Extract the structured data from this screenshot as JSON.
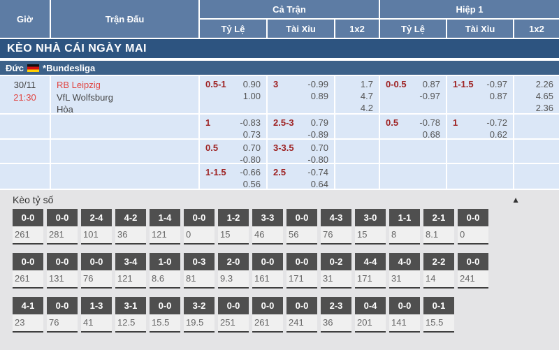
{
  "header": {
    "col_time": "Giờ",
    "col_match": "Trận Đấu",
    "group_full": "Cả Trận",
    "group_half": "Hiệp 1",
    "sub_handicap_full": "Tỷ Lệ",
    "sub_ou_full": "Tài Xỉu",
    "sub_1x2_full": "1x2",
    "sub_handicap_half": "Tỷ Lệ",
    "sub_ou_half": "Tài Xỉu",
    "sub_1x2_half": "1x2"
  },
  "section_title": "KÈO NHÀ CÁI NGÀY MAI",
  "league": {
    "country": "Đức",
    "flag": "germany-flag",
    "name": "*Bundesliga"
  },
  "match": {
    "date": "30/11",
    "time": "21:30",
    "home": "RB Leipzig",
    "away": "VfL Wolfsburg",
    "draw": "Hòa"
  },
  "colors": {
    "header_blue": "#5d7ca4",
    "title_blue": "#2d5480",
    "league_blue": "#3c6189",
    "row_blue": "#dbe7f7",
    "accent_red": "#e04542",
    "handicap_maroon": "#9e2222",
    "chip_gray": "#4f4f4f"
  },
  "odds_rows": [
    {
      "full_handicap": {
        "line": "0.5-1",
        "top": "0.90",
        "bottom": "1.00"
      },
      "full_ou": {
        "line": "3",
        "top": "-0.99",
        "bottom": "0.89"
      },
      "full_1x2": [
        "1.7",
        "4.7",
        "4.2"
      ],
      "half_handicap": {
        "line": "0-0.5",
        "top": "0.87",
        "bottom": "-0.97"
      },
      "half_ou": {
        "line": "1-1.5",
        "top": "-0.97",
        "bottom": "0.87"
      },
      "half_1x2": [
        "2.26",
        "4.65",
        "2.36"
      ]
    },
    {
      "full_handicap": {
        "line": "1",
        "top": "-0.83",
        "bottom": "0.73"
      },
      "full_ou": {
        "line": "2.5-3",
        "top": "0.79",
        "bottom": "-0.89"
      },
      "full_1x2": null,
      "half_handicap": {
        "line": "0.5",
        "top": "-0.78",
        "bottom": "0.68"
      },
      "half_ou": {
        "line": "1",
        "top": "-0.72",
        "bottom": "0.62"
      },
      "half_1x2": null
    },
    {
      "full_handicap": {
        "line": "0.5",
        "top": "0.70",
        "bottom": "-0.80"
      },
      "full_ou": {
        "line": "3-3.5",
        "top": "0.70",
        "bottom": "-0.80"
      },
      "full_1x2": null,
      "half_handicap": null,
      "half_ou": null,
      "half_1x2": null
    },
    {
      "full_handicap": {
        "line": "1-1.5",
        "top": "-0.66",
        "bottom": "0.56"
      },
      "full_ou": {
        "line": "2.5",
        "top": "-0.74",
        "bottom": "0.64"
      },
      "full_1x2": null,
      "half_handicap": null,
      "half_ou": null,
      "half_1x2": null
    }
  ],
  "score_section": {
    "title": "Kèo tỷ số",
    "collapse_icon": "▲",
    "rows": [
      [
        {
          "score": "0-0",
          "odds": "261"
        },
        {
          "score": "0-0",
          "odds": "281"
        },
        {
          "score": "2-4",
          "odds": "101"
        },
        {
          "score": "4-2",
          "odds": "36"
        },
        {
          "score": "1-4",
          "odds": "121"
        },
        {
          "score": "0-0",
          "odds": "0"
        },
        {
          "score": "1-2",
          "odds": "15"
        },
        {
          "score": "3-3",
          "odds": "46"
        },
        {
          "score": "0-0",
          "odds": "56"
        },
        {
          "score": "4-3",
          "odds": "76"
        },
        {
          "score": "3-0",
          "odds": "15"
        },
        {
          "score": "1-1",
          "odds": "8"
        },
        {
          "score": "2-1",
          "odds": "8.1"
        },
        {
          "score": "0-0",
          "odds": "0"
        }
      ],
      [
        {
          "score": "0-0",
          "odds": "261"
        },
        {
          "score": "0-0",
          "odds": "131"
        },
        {
          "score": "0-0",
          "odds": "76"
        },
        {
          "score": "3-4",
          "odds": "121"
        },
        {
          "score": "1-0",
          "odds": "8.6"
        },
        {
          "score": "0-3",
          "odds": "81"
        },
        {
          "score": "2-0",
          "odds": "9.3"
        },
        {
          "score": "0-0",
          "odds": "161"
        },
        {
          "score": "0-0",
          "odds": "171"
        },
        {
          "score": "0-2",
          "odds": "31"
        },
        {
          "score": "4-4",
          "odds": "171"
        },
        {
          "score": "4-0",
          "odds": "31"
        },
        {
          "score": "2-2",
          "odds": "14"
        },
        {
          "score": "0-0",
          "odds": "241"
        }
      ],
      [
        {
          "score": "4-1",
          "odds": "23"
        },
        {
          "score": "0-0",
          "odds": "76"
        },
        {
          "score": "1-3",
          "odds": "41"
        },
        {
          "score": "3-1",
          "odds": "12.5"
        },
        {
          "score": "0-0",
          "odds": "15.5"
        },
        {
          "score": "3-2",
          "odds": "19.5"
        },
        {
          "score": "0-0",
          "odds": "251"
        },
        {
          "score": "0-0",
          "odds": "261"
        },
        {
          "score": "0-0",
          "odds": "241"
        },
        {
          "score": "2-3",
          "odds": "36"
        },
        {
          "score": "0-4",
          "odds": "201"
        },
        {
          "score": "0-0",
          "odds": "141"
        },
        {
          "score": "0-1",
          "odds": "15.5"
        }
      ]
    ]
  }
}
